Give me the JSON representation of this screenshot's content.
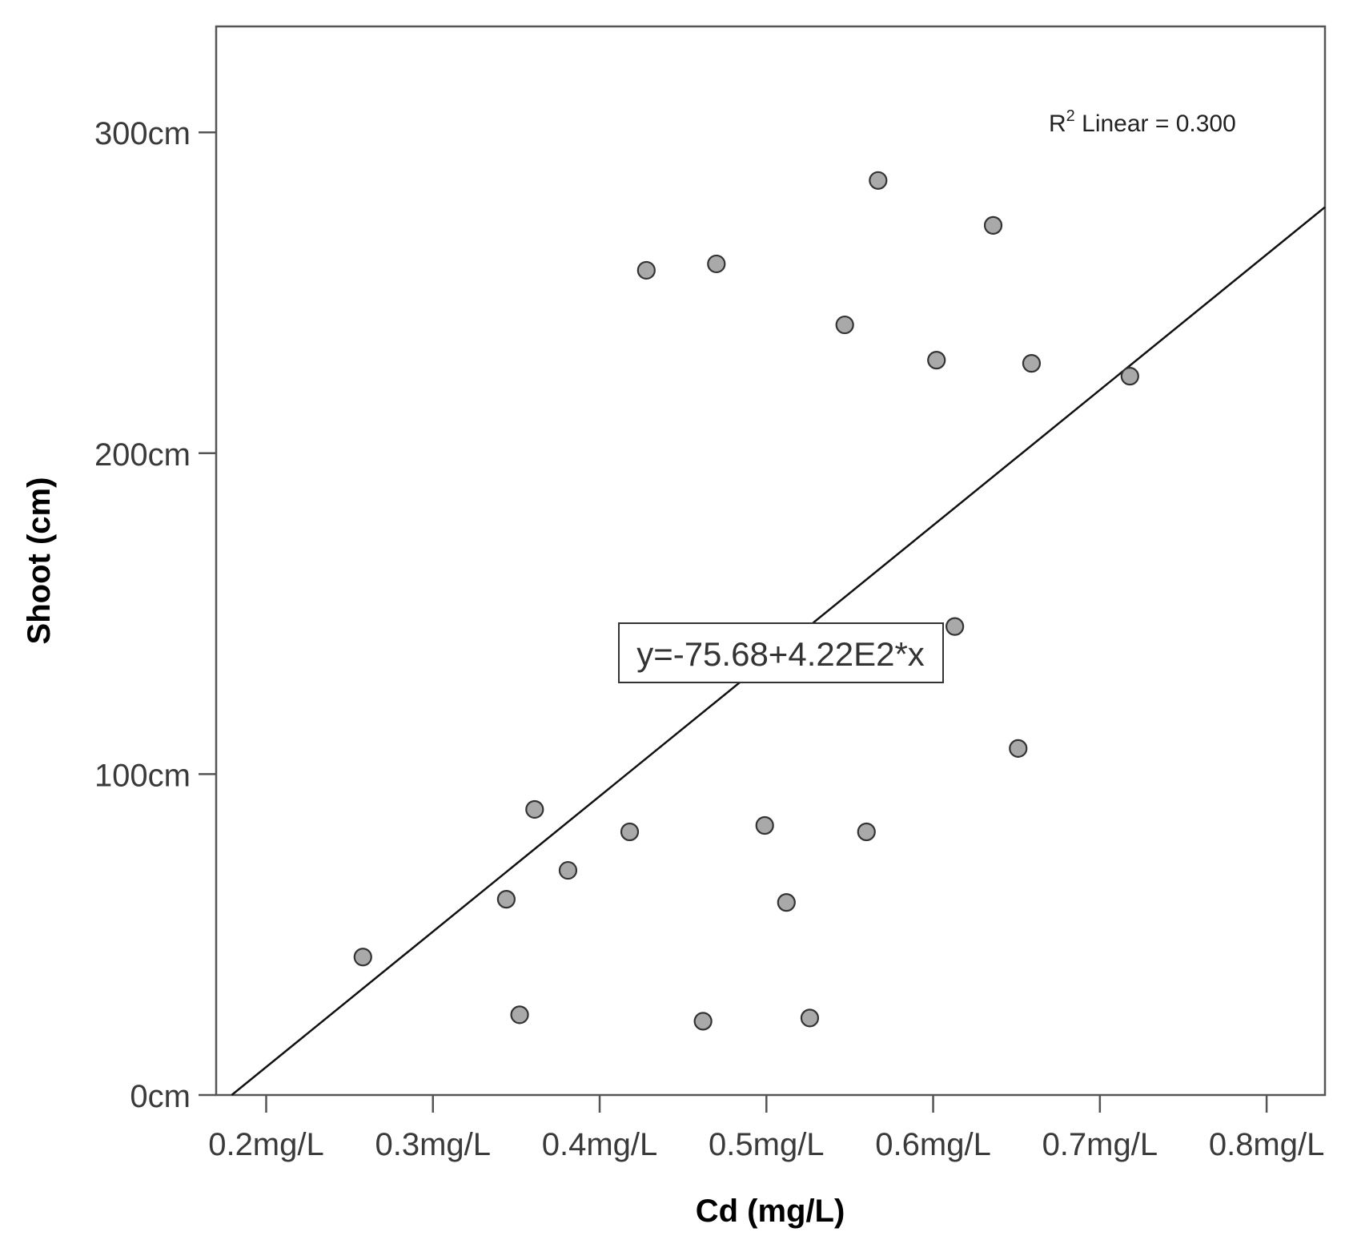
{
  "chart_data": {
    "type": "scatter",
    "xlabel": "Cd (mg/L)",
    "ylabel": "Shoot (cm)",
    "xlim": [
      0.17,
      0.835
    ],
    "ylim": [
      0,
      333
    ],
    "x_ticks": [
      {
        "value": 0.2,
        "label": "0.2mg/L"
      },
      {
        "value": 0.3,
        "label": "0.3mg/L"
      },
      {
        "value": 0.4,
        "label": "0.4mg/L"
      },
      {
        "value": 0.5,
        "label": "0.5mg/L"
      },
      {
        "value": 0.6,
        "label": "0.6mg/L"
      },
      {
        "value": 0.7,
        "label": "0.7mg/L"
      },
      {
        "value": 0.8,
        "label": "0.8mg/L"
      }
    ],
    "y_ticks": [
      {
        "value": 0,
        "label": "0cm"
      },
      {
        "value": 100,
        "label": "100cm"
      },
      {
        "value": 200,
        "label": "200cm"
      },
      {
        "value": 300,
        "label": "300cm"
      }
    ],
    "grid": false,
    "points": [
      {
        "x": 0.258,
        "y": 43
      },
      {
        "x": 0.344,
        "y": 61
      },
      {
        "x": 0.352,
        "y": 25
      },
      {
        "x": 0.361,
        "y": 89
      },
      {
        "x": 0.381,
        "y": 70
      },
      {
        "x": 0.418,
        "y": 82
      },
      {
        "x": 0.428,
        "y": 257
      },
      {
        "x": 0.462,
        "y": 23
      },
      {
        "x": 0.47,
        "y": 259
      },
      {
        "x": 0.499,
        "y": 84
      },
      {
        "x": 0.512,
        "y": 60
      },
      {
        "x": 0.526,
        "y": 24
      },
      {
        "x": 0.547,
        "y": 240
      },
      {
        "x": 0.56,
        "y": 82
      },
      {
        "x": 0.567,
        "y": 285
      },
      {
        "x": 0.602,
        "y": 229
      },
      {
        "x": 0.613,
        "y": 146
      },
      {
        "x": 0.636,
        "y": 271
      },
      {
        "x": 0.651,
        "y": 108
      },
      {
        "x": 0.659,
        "y": 228
      },
      {
        "x": 0.718,
        "y": 224
      }
    ],
    "fit_line": {
      "intercept": -75.68,
      "slope": 422
    },
    "annotations": {
      "r2_prefix": "R",
      "r2_sup": "2",
      "r2_text": " Linear = 0.300",
      "equation": "y=-75.68+4.22E2*x"
    }
  }
}
